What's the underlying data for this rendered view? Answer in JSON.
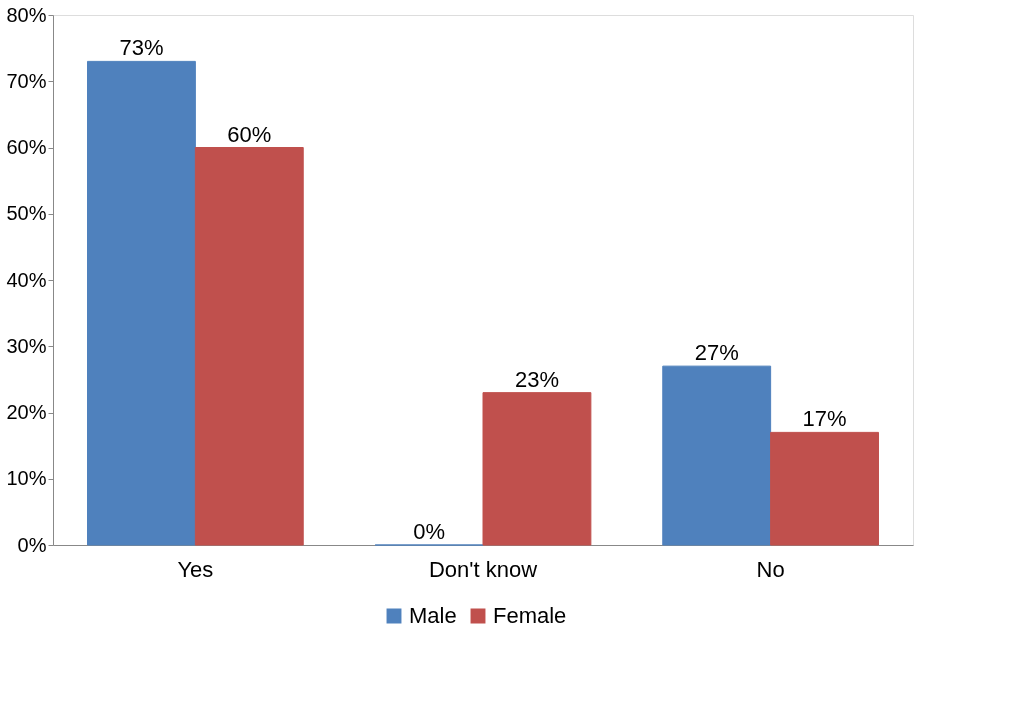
{
  "chart_data": {
    "type": "bar",
    "categories": [
      "Yes",
      "Don't know",
      "No"
    ],
    "series": [
      {
        "name": "Male",
        "color": "#4f81bd",
        "values": [
          73,
          0,
          27
        ],
        "value_labels": [
          "73%",
          "0%",
          "27%"
        ]
      },
      {
        "name": "Female",
        "color": "#c0504d",
        "values": [
          60,
          23,
          17
        ],
        "value_labels": [
          "60%",
          "23%",
          "17%"
        ]
      }
    ],
    "ylim": [
      0,
      80
    ],
    "yticks": [
      {
        "value": 0,
        "label": "0%"
      },
      {
        "value": 10,
        "label": "10%"
      },
      {
        "value": 20,
        "label": "20%"
      },
      {
        "value": 30,
        "label": "30%"
      },
      {
        "value": 40,
        "label": "40%"
      },
      {
        "value": 50,
        "label": "50%"
      },
      {
        "value": 60,
        "label": "60%"
      },
      {
        "value": 70,
        "label": "70%"
      },
      {
        "value": 80,
        "label": "80%"
      }
    ],
    "grid": false,
    "legend": "bottom"
  }
}
